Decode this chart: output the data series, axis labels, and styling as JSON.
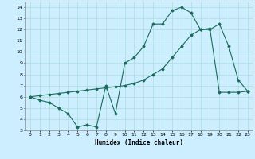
{
  "xlabel": "Humidex (Indice chaleur)",
  "ylabel": "",
  "bg_color": "#cceeff",
  "line_color": "#1a6b5a",
  "grid_color": "#aadddd",
  "xlim": [
    -0.5,
    23.5
  ],
  "ylim": [
    3,
    14.5
  ],
  "xticks": [
    0,
    1,
    2,
    3,
    4,
    5,
    6,
    7,
    8,
    9,
    10,
    11,
    12,
    13,
    14,
    15,
    16,
    17,
    18,
    19,
    20,
    21,
    22,
    23
  ],
  "yticks": [
    3,
    4,
    5,
    6,
    7,
    8,
    9,
    10,
    11,
    12,
    13,
    14
  ],
  "curve1_x": [
    0,
    1,
    2,
    3,
    4,
    5,
    6,
    7,
    8,
    9,
    10,
    11,
    12,
    13,
    14,
    15,
    16,
    17,
    18,
    19,
    20,
    21,
    22,
    23
  ],
  "curve1_y": [
    6.0,
    5.7,
    5.5,
    5.0,
    4.5,
    3.3,
    3.5,
    3.3,
    7.0,
    4.5,
    9.0,
    9.5,
    10.5,
    12.5,
    12.5,
    13.7,
    14.0,
    13.5,
    12.0,
    12.0,
    12.5,
    10.5,
    7.5,
    6.5
  ],
  "curve2_x": [
    0,
    1,
    2,
    3,
    4,
    5,
    6,
    7,
    8,
    9,
    10,
    11,
    12,
    13,
    14,
    15,
    16,
    17,
    18,
    19,
    20,
    21,
    22,
    23
  ],
  "curve2_y": [
    6.0,
    6.1,
    6.2,
    6.3,
    6.4,
    6.5,
    6.6,
    6.7,
    6.8,
    6.9,
    7.0,
    7.2,
    7.5,
    8.0,
    8.5,
    9.5,
    10.5,
    11.5,
    12.0,
    12.1,
    6.4,
    6.4,
    6.4,
    6.5
  ]
}
